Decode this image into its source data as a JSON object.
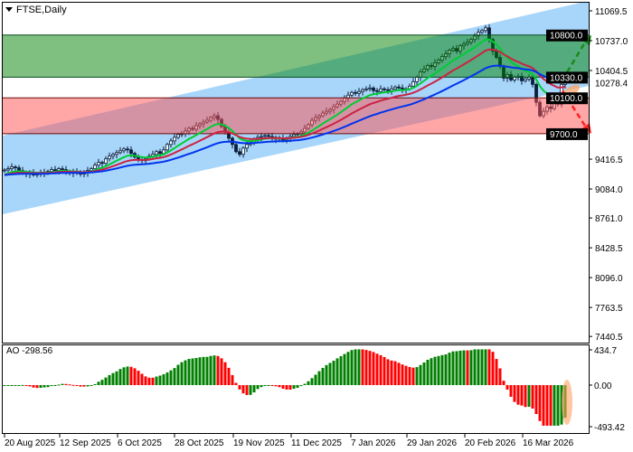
{
  "header": {
    "symbol_timeframe": "FTSE,Daily",
    "menu_icon": "triangle-down-icon"
  },
  "chart_data": {
    "type": "candlestick",
    "title": "FTSE,Daily",
    "ylim": [
      7440.5,
      11069.5
    ],
    "y_ticks": [
      "11069.5",
      "10737.0",
      "10404.5",
      "9416.5",
      "9084.0",
      "8761.0",
      "8428.5",
      "8096.0",
      "7763.5",
      "7440.5"
    ],
    "x_ticks": [
      "20 Aug 2025",
      "12 Sep 2025",
      "6 Oct 2025",
      "28 Oct 2025",
      "19 Nov 2025",
      "11 Dec 2025",
      "7 Jan 2026",
      "29 Jan 2026",
      "20 Feb 2026",
      "16 Mar 2026"
    ],
    "current_price_label": "10278.4",
    "levels": [
      {
        "value": 10800.0,
        "label": "10800.0"
      },
      {
        "value": 10330.0,
        "label": "10330.0"
      },
      {
        "value": 10100.0,
        "label": "10100.0"
      },
      {
        "value": 9700.0,
        "label": "9700.0"
      }
    ],
    "zones": [
      {
        "from": 10330.0,
        "to": 10800.0,
        "color": "#008000"
      },
      {
        "from": 9700.0,
        "to": 10100.0,
        "color": "#ff5050"
      }
    ],
    "moving_averages": [
      {
        "color": "#00cc33",
        "period": 10
      },
      {
        "color": "#cc2244",
        "period": 20
      },
      {
        "color": "#0033ee",
        "period": 40
      }
    ],
    "closes": [
      9296,
      9310,
      9330,
      9320,
      9290,
      9270,
      9250,
      9265,
      9240,
      9255,
      9270,
      9260,
      9280,
      9300,
      9290,
      9310,
      9300,
      9270,
      9280,
      9260,
      9275,
      9250,
      9265,
      9290,
      9310,
      9350,
      9380,
      9370,
      9420,
      9450,
      9470,
      9490,
      9510,
      9530,
      9520,
      9480,
      9440,
      9410,
      9400,
      9420,
      9450,
      9470,
      9500,
      9480,
      9520,
      9580,
      9620,
      9660,
      9690,
      9700,
      9730,
      9760,
      9750,
      9790,
      9810,
      9830,
      9850,
      9880,
      9900,
      9860,
      9780,
      9720,
      9650,
      9580,
      9500,
      9470,
      9540,
      9580,
      9600,
      9640,
      9660,
      9670,
      9680,
      9670,
      9660,
      9640,
      9650,
      9630,
      9650,
      9670,
      9690,
      9700,
      9720,
      9760,
      9800,
      9850,
      9880,
      9900,
      9930,
      9950,
      9970,
      10000,
      10030,
      10060,
      10100,
      10130,
      10160,
      10150,
      10170,
      10190,
      10200,
      10210,
      10180,
      10170,
      10200,
      10190,
      10180,
      10200,
      10220,
      10210,
      10190,
      10200,
      10230,
      10280,
      10330,
      10390,
      10420,
      10460,
      10450,
      10490,
      10520,
      10560,
      10590,
      10630,
      10650,
      10620,
      10680,
      10700,
      10720,
      10750,
      10790,
      10830,
      10850,
      10880,
      10750,
      10620,
      10550,
      10450,
      10320,
      10360,
      10300,
      10330,
      10340,
      10290,
      10310,
      10330,
      10250,
      10050,
      9900,
      9950,
      10000,
      9980,
      10050,
      10030,
      10250,
      10280
    ],
    "forecast": {
      "bullish_target": 10800.0,
      "bearish_target": 9700.0,
      "bullish_color": "#1a8a1a",
      "bearish_color": "#ff2020"
    },
    "indicator": {
      "name": "AO",
      "value_label": "-298.56",
      "ylim": [
        -493.42,
        434.7
      ],
      "y_ticks": [
        "434.7",
        "0.00",
        "-493.42"
      ],
      "up_color": "#008000",
      "down_color": "#ff0000"
    }
  }
}
